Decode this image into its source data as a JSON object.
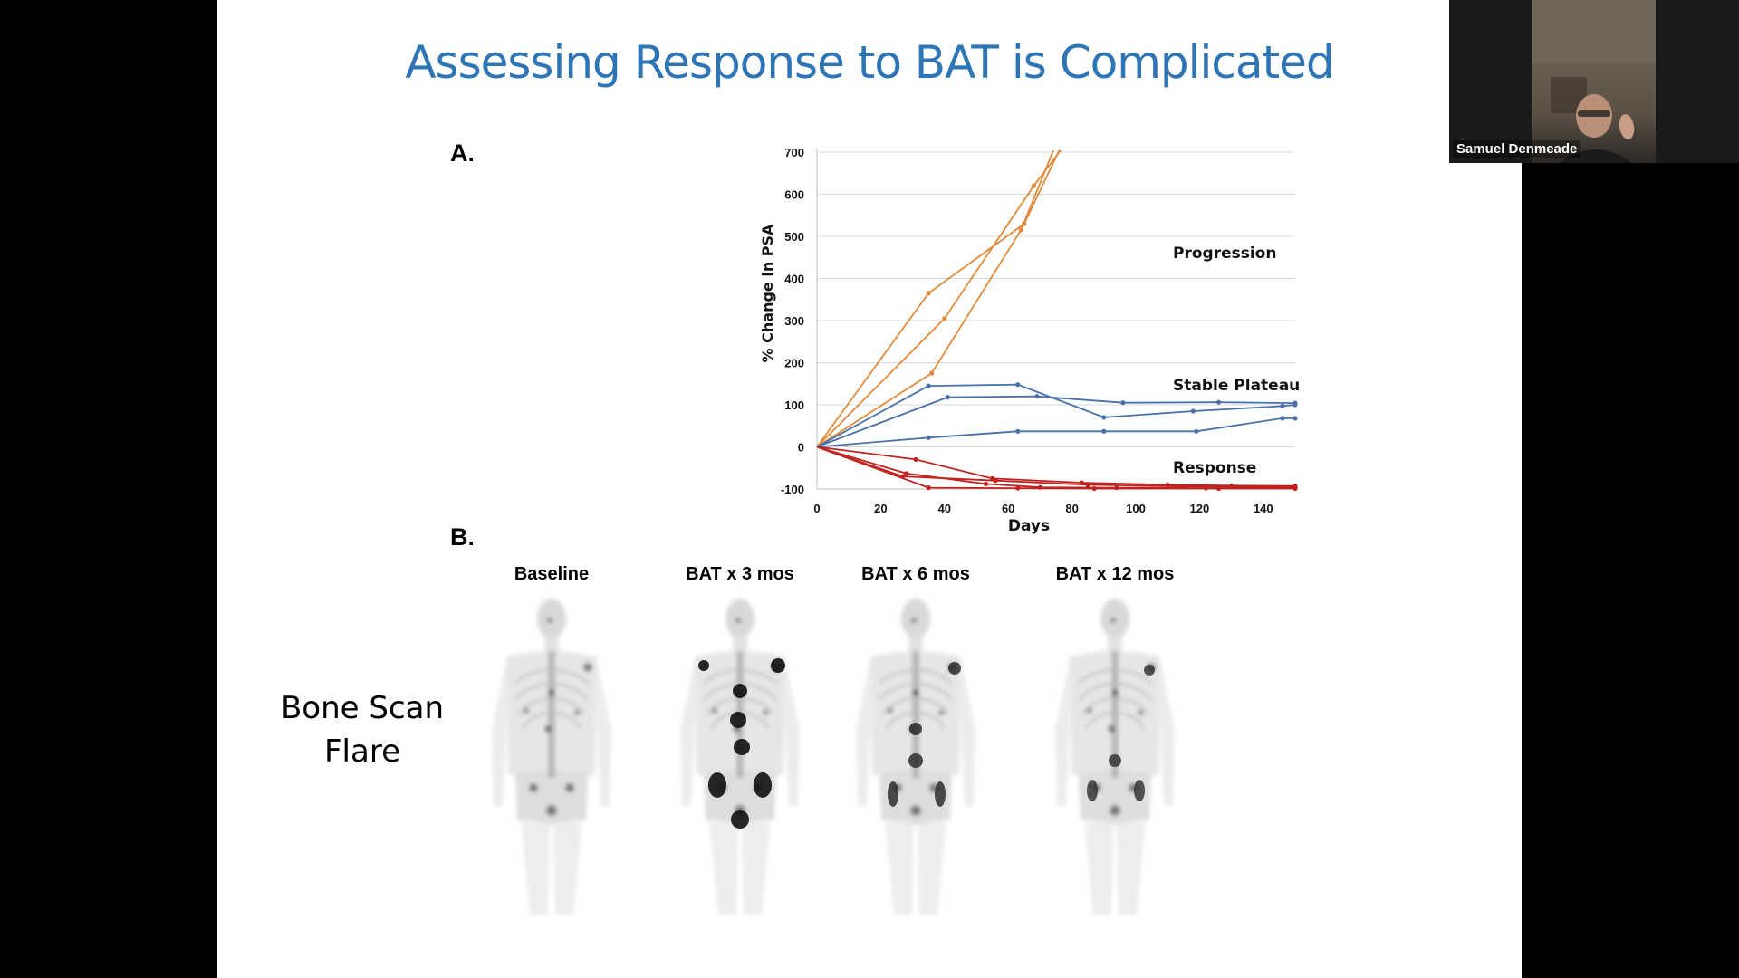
{
  "slide": {
    "title": "Assessing Response to BAT is Complicated",
    "panel_a_label": "A.",
    "panel_b_label": "B.",
    "side_label_line1": "Bone Scan",
    "side_label_line2": "Flare",
    "bone_scans": [
      {
        "caption": "Baseline"
      },
      {
        "caption": "BAT x 3 mos"
      },
      {
        "caption": "BAT x 6 mos"
      },
      {
        "caption": "BAT x 12 mos"
      }
    ]
  },
  "chart_data": {
    "type": "line",
    "xlabel": "Days",
    "ylabel": "% Change in PSA",
    "xlim": [
      0,
      150
    ],
    "ylim": [
      -100,
      700
    ],
    "x_ticks": [
      0,
      20,
      40,
      60,
      80,
      100,
      120,
      140
    ],
    "y_ticks": [
      -100,
      0,
      100,
      200,
      300,
      400,
      500,
      600,
      700
    ],
    "grid": true,
    "annotations": [
      "Progression",
      "Stable Plateau",
      "Response"
    ],
    "group_colors": {
      "Progression": "#e08a3a",
      "Stable Plateau": "#4a72a8",
      "Response": "#c0231f"
    },
    "series": [
      {
        "group": "Progression",
        "points": [
          [
            0,
            0
          ],
          [
            35,
            365
          ],
          [
            65,
            530
          ],
          [
            77,
            720
          ]
        ]
      },
      {
        "group": "Progression",
        "points": [
          [
            0,
            0
          ],
          [
            40,
            305
          ],
          [
            68,
            620
          ],
          [
            78,
            720
          ]
        ]
      },
      {
        "group": "Progression",
        "points": [
          [
            0,
            0
          ],
          [
            36,
            175
          ],
          [
            64,
            515
          ],
          [
            75,
            720
          ]
        ]
      },
      {
        "group": "Stable Plateau",
        "points": [
          [
            0,
            0
          ],
          [
            35,
            145
          ],
          [
            63,
            148
          ],
          [
            90,
            70
          ],
          [
            118,
            85
          ],
          [
            146,
            97
          ],
          [
            150,
            100
          ]
        ]
      },
      {
        "group": "Stable Plateau",
        "points": [
          [
            0,
            0
          ],
          [
            41,
            118
          ],
          [
            69,
            120
          ],
          [
            96,
            105
          ],
          [
            126,
            106
          ],
          [
            150,
            104
          ]
        ]
      },
      {
        "group": "Stable Plateau",
        "points": [
          [
            0,
            0
          ],
          [
            35,
            22
          ],
          [
            63,
            37
          ],
          [
            90,
            37
          ],
          [
            119,
            37
          ],
          [
            146,
            68
          ],
          [
            150,
            68
          ]
        ]
      },
      {
        "group": "Response",
        "points": [
          [
            0,
            0
          ],
          [
            31,
            -30
          ],
          [
            55,
            -75
          ],
          [
            83,
            -85
          ],
          [
            110,
            -90
          ],
          [
            130,
            -92
          ],
          [
            150,
            -93
          ]
        ]
      },
      {
        "group": "Response",
        "points": [
          [
            0,
            0
          ],
          [
            27,
            -70
          ],
          [
            56,
            -80
          ],
          [
            85,
            -90
          ],
          [
            115,
            -94
          ],
          [
            150,
            -96
          ]
        ]
      },
      {
        "group": "Response",
        "points": [
          [
            0,
            0
          ],
          [
            28,
            -63
          ],
          [
            53,
            -88
          ],
          [
            70,
            -96
          ],
          [
            94,
            -97
          ],
          [
            122,
            -98
          ],
          [
            150,
            -98
          ]
        ]
      },
      {
        "group": "Response",
        "points": [
          [
            0,
            0
          ],
          [
            35,
            -97
          ],
          [
            63,
            -98
          ],
          [
            87,
            -99
          ],
          [
            126,
            -99
          ],
          [
            150,
            -99
          ]
        ]
      }
    ]
  },
  "video": {
    "participant_name": "Samuel Denmeade"
  }
}
